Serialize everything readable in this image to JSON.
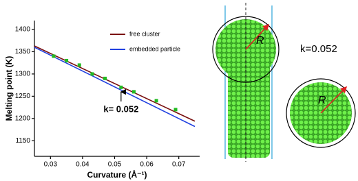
{
  "chart_data": {
    "type": "line",
    "xlabel": "Curvature (Å⁻¹)",
    "ylabel": "Melting point (K)",
    "xlim": [
      0.025,
      0.0765
    ],
    "ylim": [
      1115,
      1420
    ],
    "xticks": [
      0.03,
      0.04,
      0.05,
      0.06,
      0.07
    ],
    "yticks": [
      1150,
      1200,
      1250,
      1300,
      1350,
      1400
    ],
    "legend": "upper right",
    "series": [
      {
        "name": "free cluster",
        "color": "#7a1010",
        "x": [
          0.025,
          0.075
        ],
        "values": [
          1363,
          1194
        ]
      },
      {
        "name": "embedded particle",
        "color": "#2040e0",
        "x": [
          0.025,
          0.075
        ],
        "values": [
          1360,
          1182
        ]
      }
    ],
    "points": {
      "color": "#22bb22",
      "x": [
        0.031,
        0.035,
        0.039,
        0.043,
        0.047,
        0.052,
        0.056,
        0.063,
        0.069
      ],
      "y": [
        1340,
        1330,
        1320,
        1300,
        1290,
        1270,
        1260,
        1240,
        1220
      ]
    },
    "annotation": {
      "text": "k= 0.052",
      "x": 0.052
    }
  },
  "illustration": {
    "radius_label": "R",
    "k_label": "k=0.052"
  }
}
